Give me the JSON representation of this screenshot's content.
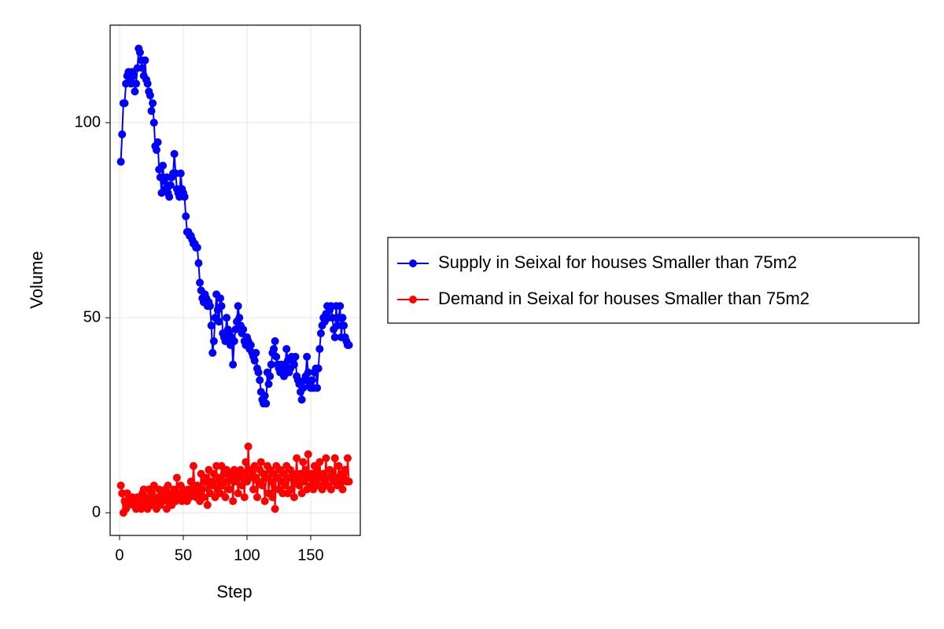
{
  "chart_data": {
    "type": "line",
    "x_label": "Step",
    "y_label": "Volume",
    "xlim": [
      -7.4,
      188.9
    ],
    "ylim": [
      -5.8,
      125
    ],
    "xticks": [
      0,
      50,
      100,
      150
    ],
    "yticks": [
      0,
      50,
      100
    ],
    "grid": true,
    "legend_position": "right",
    "x": [
      1,
      2,
      3,
      4,
      5,
      6,
      7,
      8,
      9,
      10,
      11,
      12,
      13,
      14,
      15,
      16,
      17,
      18,
      19,
      20,
      21,
      22,
      23,
      24,
      25,
      26,
      27,
      28,
      29,
      30,
      31,
      32,
      33,
      34,
      35,
      36,
      37,
      38,
      39,
      40,
      41,
      42,
      43,
      44,
      45,
      46,
      47,
      48,
      49,
      50,
      51,
      52,
      53,
      54,
      55,
      56,
      57,
      58,
      59,
      60,
      61,
      62,
      63,
      64,
      65,
      66,
      67,
      68,
      69,
      70,
      71,
      72,
      73,
      74,
      75,
      76,
      77,
      78,
      79,
      80,
      81,
      82,
      83,
      84,
      85,
      86,
      87,
      88,
      89,
      90,
      91,
      92,
      93,
      94,
      95,
      96,
      97,
      98,
      99,
      100,
      101,
      102,
      103,
      104,
      105,
      106,
      107,
      108,
      109,
      110,
      111,
      112,
      113,
      114,
      115,
      116,
      117,
      118,
      119,
      120,
      121,
      122,
      123,
      124,
      125,
      126,
      127,
      128,
      129,
      130,
      131,
      132,
      133,
      134,
      135,
      136,
      137,
      138,
      139,
      140,
      141,
      142,
      143,
      144,
      145,
      146,
      147,
      148,
      149,
      150,
      151,
      152,
      153,
      154,
      155,
      156,
      157,
      158,
      159,
      160,
      161,
      162,
      163,
      164,
      165,
      166,
      167,
      168,
      169,
      170,
      171,
      172,
      173,
      174,
      175,
      176,
      177,
      178,
      179,
      180
    ],
    "series": [
      {
        "name": "Supply in Seixal for houses Smaller than 75m2",
        "color": "#0000ff",
        "values": [
          90,
          97,
          105,
          105,
          110,
          112,
          113,
          111,
          110,
          113,
          112,
          108,
          110,
          114,
          119,
          118,
          116,
          114,
          112,
          116,
          111,
          110,
          108,
          107,
          103,
          105,
          100,
          94,
          93,
          95,
          88,
          86,
          82,
          89,
          85,
          83,
          86,
          82,
          81,
          84,
          86,
          87,
          92,
          87,
          83,
          82,
          81,
          87,
          83,
          82,
          81,
          76,
          72,
          72,
          71,
          71,
          70,
          69,
          69,
          68,
          68,
          64,
          59,
          57,
          55,
          54,
          56,
          55,
          53,
          54,
          53,
          48,
          41,
          44,
          50,
          56,
          52,
          49,
          55,
          53,
          46,
          45,
          44,
          50,
          47,
          46,
          43,
          45,
          38,
          44,
          47,
          49,
          53,
          50,
          48,
          46,
          47,
          44,
          43,
          45,
          44,
          42,
          43,
          41,
          40,
          39,
          41,
          37,
          36,
          34,
          31,
          29,
          28,
          30,
          28,
          36,
          33,
          35,
          38,
          41,
          42,
          44,
          40,
          38,
          37,
          36,
          38,
          37,
          35,
          38,
          42,
          39,
          36,
          37,
          40,
          39,
          38,
          40,
          35,
          34,
          33,
          31,
          29,
          32,
          34,
          35,
          40,
          36,
          33,
          32,
          34,
          32,
          36,
          37,
          32,
          37,
          42,
          46,
          48,
          50,
          49,
          51,
          53,
          50,
          52,
          53,
          50,
          47,
          45,
          53,
          48,
          50,
          53,
          45,
          50,
          48,
          45,
          44,
          43,
          43
        ]
      },
      {
        "name": "Demand in Seixal for houses Smaller than 75m2",
        "color": "#ff0000",
        "values": [
          7,
          5,
          0,
          3,
          1,
          5,
          2,
          4,
          3,
          4,
          2,
          3,
          1,
          4,
          2,
          3,
          1,
          5,
          6,
          2,
          4,
          1,
          6,
          3,
          5,
          2,
          7,
          4,
          1,
          3,
          6,
          2,
          5,
          3,
          4,
          6,
          1,
          7,
          3,
          5,
          2,
          4,
          6,
          3,
          9,
          5,
          4,
          7,
          3,
          6,
          4,
          5,
          3,
          6,
          4,
          8,
          5,
          12,
          6,
          4,
          7,
          5,
          3,
          10,
          6,
          4,
          8,
          9,
          2,
          11,
          5,
          8,
          7,
          10,
          4,
          12,
          6,
          9,
          5,
          12,
          7,
          10,
          4,
          11,
          8,
          6,
          10,
          9,
          3,
          11,
          8,
          10,
          5,
          9,
          11,
          7,
          10,
          4,
          13,
          8,
          17,
          9,
          11,
          10,
          6,
          12,
          9,
          4,
          8,
          11,
          13,
          7,
          10,
          3,
          9,
          12,
          5,
          11,
          8,
          4,
          10,
          1,
          12,
          9,
          6,
          11,
          8,
          5,
          10,
          7,
          12,
          5,
          9,
          11,
          6,
          10,
          4,
          9,
          14,
          8,
          7,
          10,
          5,
          13,
          8,
          11,
          6,
          15,
          9,
          7,
          10,
          6,
          12,
          8,
          11,
          7,
          13,
          9,
          6,
          10,
          8,
          14,
          7,
          9,
          11,
          6,
          10,
          8,
          14,
          9,
          7,
          12,
          8,
          10,
          6,
          9,
          11,
          8,
          14,
          8
        ]
      }
    ]
  }
}
